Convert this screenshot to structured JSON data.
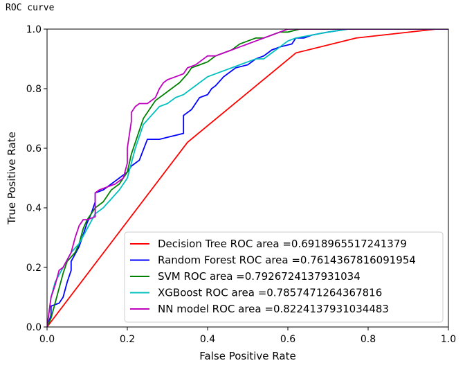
{
  "cell_output_text": "ROC curve",
  "chart_data": {
    "type": "line",
    "xlabel": "False Positive Rate",
    "ylabel": "True Positive Rate",
    "xlim": [
      0.0,
      1.0
    ],
    "ylim": [
      0.0,
      1.0
    ],
    "xticks": [
      "0.0",
      "0.2",
      "0.4",
      "0.6",
      "0.8",
      "1.0"
    ],
    "yticks": [
      "0.0",
      "0.2",
      "0.4",
      "0.6",
      "0.8",
      "1.0"
    ],
    "legend_position": "lower right",
    "grid": false,
    "series": [
      {
        "name": "Decision Tree ROC area =0.6918965517241379",
        "color": "#ff0000",
        "x": [
          0.0,
          0.35,
          0.62,
          0.77,
          0.97,
          1.0
        ],
        "y": [
          0.0,
          0.62,
          0.92,
          0.97,
          1.0,
          1.0
        ]
      },
      {
        "name": "Random Forest ROC area =0.7614367816091954",
        "color": "#0000ff",
        "x": [
          0.0,
          0.01,
          0.01,
          0.03,
          0.04,
          0.05,
          0.06,
          0.06,
          0.08,
          0.09,
          0.1,
          0.11,
          0.12,
          0.12,
          0.14,
          0.16,
          0.17,
          0.18,
          0.2,
          0.21,
          0.22,
          0.23,
          0.25,
          0.28,
          0.31,
          0.34,
          0.34,
          0.36,
          0.37,
          0.38,
          0.4,
          0.41,
          0.42,
          0.44,
          0.45,
          0.47,
          0.5,
          0.52,
          0.54,
          0.56,
          0.58,
          0.61,
          0.62,
          0.64,
          0.66,
          0.7,
          0.75,
          0.78,
          1.0
        ],
        "y": [
          0.0,
          0.04,
          0.07,
          0.08,
          0.1,
          0.15,
          0.19,
          0.22,
          0.27,
          0.31,
          0.35,
          0.38,
          0.42,
          0.45,
          0.46,
          0.48,
          0.49,
          0.5,
          0.52,
          0.54,
          0.55,
          0.56,
          0.63,
          0.63,
          0.64,
          0.65,
          0.71,
          0.73,
          0.75,
          0.77,
          0.78,
          0.8,
          0.81,
          0.84,
          0.85,
          0.87,
          0.88,
          0.9,
          0.91,
          0.93,
          0.94,
          0.95,
          0.97,
          0.97,
          0.98,
          0.99,
          1.0,
          1.0,
          1.0
        ]
      },
      {
        "name": "SVM ROC area =0.7926724137931034",
        "color": "#008000",
        "x": [
          0.0,
          0.01,
          0.02,
          0.03,
          0.04,
          0.05,
          0.07,
          0.08,
          0.09,
          0.1,
          0.11,
          0.12,
          0.14,
          0.16,
          0.18,
          0.2,
          0.21,
          0.22,
          0.23,
          0.24,
          0.25,
          0.26,
          0.27,
          0.29,
          0.31,
          0.33,
          0.35,
          0.36,
          0.38,
          0.4,
          0.42,
          0.44,
          0.46,
          0.48,
          0.5,
          0.52,
          0.54,
          0.56,
          0.58,
          0.6,
          0.63,
          0.66,
          0.7,
          0.75,
          1.0
        ],
        "y": [
          0.0,
          0.03,
          0.08,
          0.13,
          0.18,
          0.22,
          0.25,
          0.28,
          0.33,
          0.36,
          0.38,
          0.4,
          0.42,
          0.46,
          0.48,
          0.52,
          0.58,
          0.62,
          0.66,
          0.7,
          0.72,
          0.74,
          0.76,
          0.78,
          0.8,
          0.82,
          0.85,
          0.87,
          0.88,
          0.89,
          0.91,
          0.92,
          0.93,
          0.95,
          0.96,
          0.97,
          0.97,
          0.98,
          0.99,
          0.99,
          1.0,
          1.0,
          1.0,
          1.0,
          1.0
        ]
      },
      {
        "name": "XGBoost ROC area =0.7857471264367816",
        "color": "#00bfbf",
        "x": [
          0.0,
          0.01,
          0.02,
          0.04,
          0.06,
          0.08,
          0.1,
          0.12,
          0.14,
          0.16,
          0.18,
          0.2,
          0.21,
          0.22,
          0.23,
          0.24,
          0.26,
          0.28,
          0.3,
          0.32,
          0.34,
          0.36,
          0.38,
          0.4,
          0.44,
          0.48,
          0.5,
          0.52,
          0.54,
          0.56,
          0.58,
          0.6,
          0.62,
          0.66,
          0.7,
          0.75,
          0.8,
          1.0
        ],
        "y": [
          0.0,
          0.1,
          0.15,
          0.2,
          0.25,
          0.28,
          0.33,
          0.38,
          0.4,
          0.43,
          0.46,
          0.5,
          0.55,
          0.6,
          0.64,
          0.68,
          0.71,
          0.74,
          0.75,
          0.77,
          0.78,
          0.8,
          0.82,
          0.84,
          0.86,
          0.88,
          0.89,
          0.9,
          0.9,
          0.92,
          0.94,
          0.96,
          0.97,
          0.98,
          0.99,
          1.0,
          1.0,
          1.0
        ]
      },
      {
        "name": "NN model ROC area =0.8224137931034483",
        "color": "#bf00bf",
        "x": [
          0.0,
          0.01,
          0.02,
          0.03,
          0.04,
          0.06,
          0.07,
          0.08,
          0.09,
          0.1,
          0.12,
          0.12,
          0.13,
          0.15,
          0.17,
          0.19,
          0.2,
          0.2,
          0.21,
          0.21,
          0.22,
          0.23,
          0.25,
          0.26,
          0.27,
          0.28,
          0.29,
          0.3,
          0.32,
          0.34,
          0.35,
          0.37,
          0.38,
          0.4,
          0.42,
          0.44,
          0.46,
          0.48,
          0.5,
          0.52,
          0.54,
          0.56,
          0.58,
          0.6,
          0.62,
          0.66,
          0.7,
          0.75,
          1.0
        ],
        "y": [
          0.0,
          0.1,
          0.14,
          0.19,
          0.2,
          0.25,
          0.3,
          0.34,
          0.36,
          0.36,
          0.37,
          0.45,
          0.46,
          0.47,
          0.48,
          0.5,
          0.55,
          0.6,
          0.69,
          0.72,
          0.74,
          0.75,
          0.75,
          0.76,
          0.77,
          0.8,
          0.82,
          0.83,
          0.84,
          0.85,
          0.87,
          0.88,
          0.89,
          0.91,
          0.91,
          0.92,
          0.93,
          0.94,
          0.95,
          0.96,
          0.97,
          0.98,
          0.99,
          1.0,
          1.0,
          1.0,
          1.0,
          1.0,
          1.0
        ]
      }
    ]
  }
}
